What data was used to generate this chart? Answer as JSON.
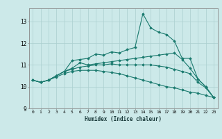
{
  "title": "",
  "xlabel": "Humidex (Indice chaleur)",
  "xlim": [
    -0.5,
    23.5
  ],
  "ylim": [
    9,
    13.6
  ],
  "yticks": [
    9,
    10,
    11,
    12,
    13
  ],
  "xticks": [
    0,
    1,
    2,
    3,
    4,
    5,
    6,
    7,
    8,
    9,
    10,
    11,
    12,
    13,
    14,
    15,
    16,
    17,
    18,
    19,
    20,
    21,
    22,
    23
  ],
  "bg_color": "#cce9e9",
  "grid_color": "#aacfcf",
  "line_color": "#1a7a6e",
  "series": [
    [
      10.3,
      10.2,
      10.3,
      10.5,
      10.7,
      11.2,
      11.25,
      11.3,
      11.5,
      11.45,
      11.6,
      11.55,
      11.7,
      11.8,
      13.35,
      12.7,
      12.5,
      12.4,
      12.1,
      11.3,
      11.3,
      10.35,
      10.0,
      9.5
    ],
    [
      10.3,
      10.2,
      10.3,
      10.5,
      10.7,
      10.85,
      11.1,
      11.0,
      11.05,
      11.1,
      11.15,
      11.2,
      11.25,
      11.3,
      11.35,
      11.4,
      11.45,
      11.5,
      11.55,
      11.25,
      10.85,
      10.35,
      10.0,
      9.5
    ],
    [
      10.3,
      10.2,
      10.3,
      10.5,
      10.7,
      10.8,
      10.9,
      10.95,
      11.0,
      11.0,
      11.05,
      11.0,
      11.0,
      11.0,
      11.0,
      11.0,
      10.95,
      10.9,
      10.8,
      10.7,
      10.6,
      10.2,
      9.95,
      9.5
    ],
    [
      10.3,
      10.2,
      10.3,
      10.45,
      10.6,
      10.7,
      10.75,
      10.75,
      10.75,
      10.7,
      10.65,
      10.6,
      10.5,
      10.4,
      10.3,
      10.2,
      10.1,
      10.0,
      9.95,
      9.85,
      9.75,
      9.7,
      9.6,
      9.5
    ]
  ]
}
